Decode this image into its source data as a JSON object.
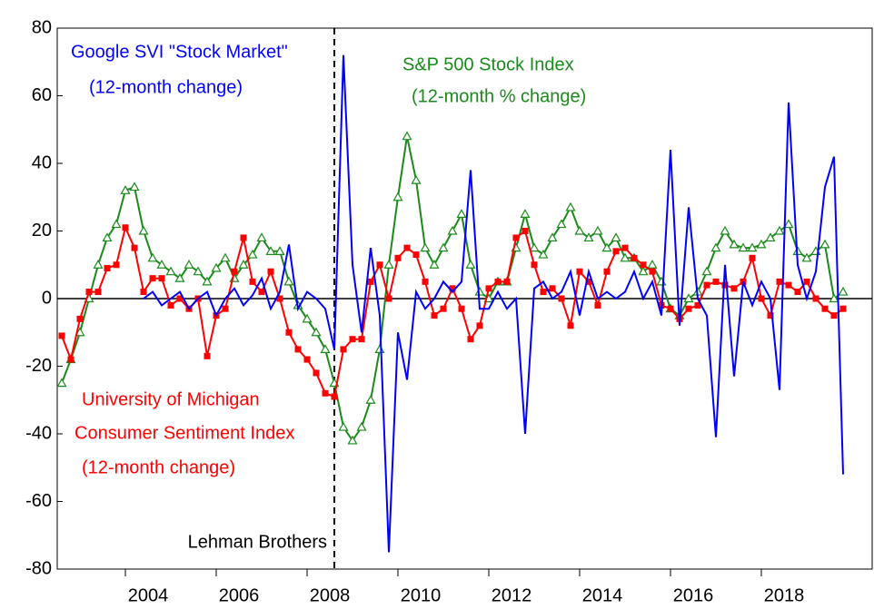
{
  "chart_data": {
    "type": "line",
    "x": [
      2002.6,
      2002.8,
      2003.0,
      2003.2,
      2003.4,
      2003.6,
      2003.8,
      2004.0,
      2004.2,
      2004.4,
      2004.6,
      2004.8,
      2005.0,
      2005.2,
      2005.4,
      2005.6,
      2005.8,
      2006.0,
      2006.2,
      2006.4,
      2006.6,
      2006.8,
      2007.0,
      2007.2,
      2007.4,
      2007.6,
      2007.8,
      2008.0,
      2008.2,
      2008.4,
      2008.6,
      2008.8,
      2009.0,
      2009.2,
      2009.4,
      2009.6,
      2009.8,
      2010.0,
      2010.2,
      2010.4,
      2010.6,
      2010.8,
      2011.0,
      2011.2,
      2011.4,
      2011.6,
      2011.8,
      2012.0,
      2012.2,
      2012.4,
      2012.6,
      2012.8,
      2013.0,
      2013.2,
      2013.4,
      2013.6,
      2013.8,
      2014.0,
      2014.2,
      2014.4,
      2014.6,
      2014.8,
      2015.0,
      2015.2,
      2015.4,
      2015.6,
      2015.8,
      2016.0,
      2016.2,
      2016.4,
      2016.6,
      2016.8,
      2017.0,
      2017.2,
      2017.4,
      2017.6,
      2017.8,
      2018.0,
      2018.2,
      2018.4,
      2018.6,
      2018.8,
      2019.0,
      2019.2,
      2019.4,
      2019.6,
      2019.8
    ],
    "series": [
      {
        "name": "S&P 500 Stock Index",
        "note": "(12-month % change)",
        "color": "#1a8a1a",
        "marker": "triangle",
        "values": [
          -25,
          -18,
          -10,
          0,
          10,
          18,
          22,
          32,
          33,
          20,
          12,
          10,
          8,
          6,
          10,
          8,
          5,
          9,
          12,
          6,
          10,
          13,
          18,
          14,
          14,
          5,
          -2,
          -6,
          -10,
          -15,
          -25,
          -38,
          -42,
          -38,
          -30,
          -15,
          10,
          30,
          48,
          35,
          15,
          10,
          15,
          20,
          25,
          10,
          2,
          0,
          5,
          5,
          15,
          25,
          15,
          13,
          18,
          22,
          27,
          20,
          18,
          20,
          15,
          18,
          12,
          12,
          8,
          10,
          5,
          -3,
          -5,
          0,
          2,
          8,
          15,
          20,
          16,
          15,
          15,
          16,
          18,
          20,
          22,
          14,
          12,
          14,
          16,
          0,
          2
        ]
      },
      {
        "name": "University of Michigan",
        "name2": "Consumer Sentiment Index",
        "note": "(12-month change)",
        "color": "#ff0000",
        "marker": "square",
        "values": [
          -11,
          -18,
          -6,
          2,
          2,
          9,
          10,
          21,
          15,
          2,
          6,
          6,
          -2,
          0,
          -3,
          0,
          -17,
          -5,
          -3,
          8,
          18,
          5,
          2,
          8,
          0,
          -10,
          -15,
          -18,
          -22,
          -28,
          -29,
          -15,
          -12,
          -12,
          5,
          10,
          0,
          12,
          15,
          13,
          5,
          -5,
          -3,
          3,
          -3,
          -12,
          -8,
          3,
          5,
          5,
          18,
          20,
          10,
          2,
          3,
          0,
          -8,
          8,
          5,
          -2,
          8,
          14,
          15,
          12,
          10,
          8,
          -2,
          -3,
          -6,
          -3,
          -2,
          4,
          5,
          4,
          3,
          5,
          12,
          0,
          -5,
          5,
          4,
          2,
          5,
          0,
          -3,
          -5,
          -3
        ]
      },
      {
        "name": "Google SVI  \"Stock Market\"",
        "note": "(12-month change)",
        "color": "#0000ff",
        "marker": "none",
        "values": [
          null,
          null,
          null,
          null,
          null,
          null,
          null,
          null,
          null,
          0,
          2,
          -2,
          0,
          2,
          -3,
          0,
          2,
          -5,
          0,
          3,
          -2,
          1,
          6,
          -3,
          2,
          16,
          -3,
          2,
          0,
          -3,
          -15,
          72,
          10,
          -10,
          15,
          -5,
          -75,
          -10,
          -24,
          2,
          -3,
          0,
          5,
          2,
          5,
          38,
          -3,
          -3,
          2,
          -3,
          0,
          -40,
          3,
          5,
          0,
          2,
          8,
          -5,
          8,
          0,
          2,
          0,
          2,
          8,
          0,
          5,
          -5,
          44,
          -8,
          27,
          0,
          -5,
          -41,
          10,
          -23,
          5,
          -2,
          5,
          0,
          -27,
          58,
          10,
          0,
          8,
          33,
          42,
          -52
        ]
      }
    ],
    "event": {
      "x": 2008.6,
      "label": "Lehman Brothers"
    },
    "xlim": [
      2002.5,
      2020.44
    ],
    "xticks": [
      2004,
      2006,
      2008,
      2010,
      2012,
      2014,
      2016,
      2018
    ],
    "ylim": [
      -80,
      80
    ],
    "yticks": [
      -80,
      -60,
      -40,
      -20,
      0,
      20,
      40,
      60,
      80
    ]
  }
}
